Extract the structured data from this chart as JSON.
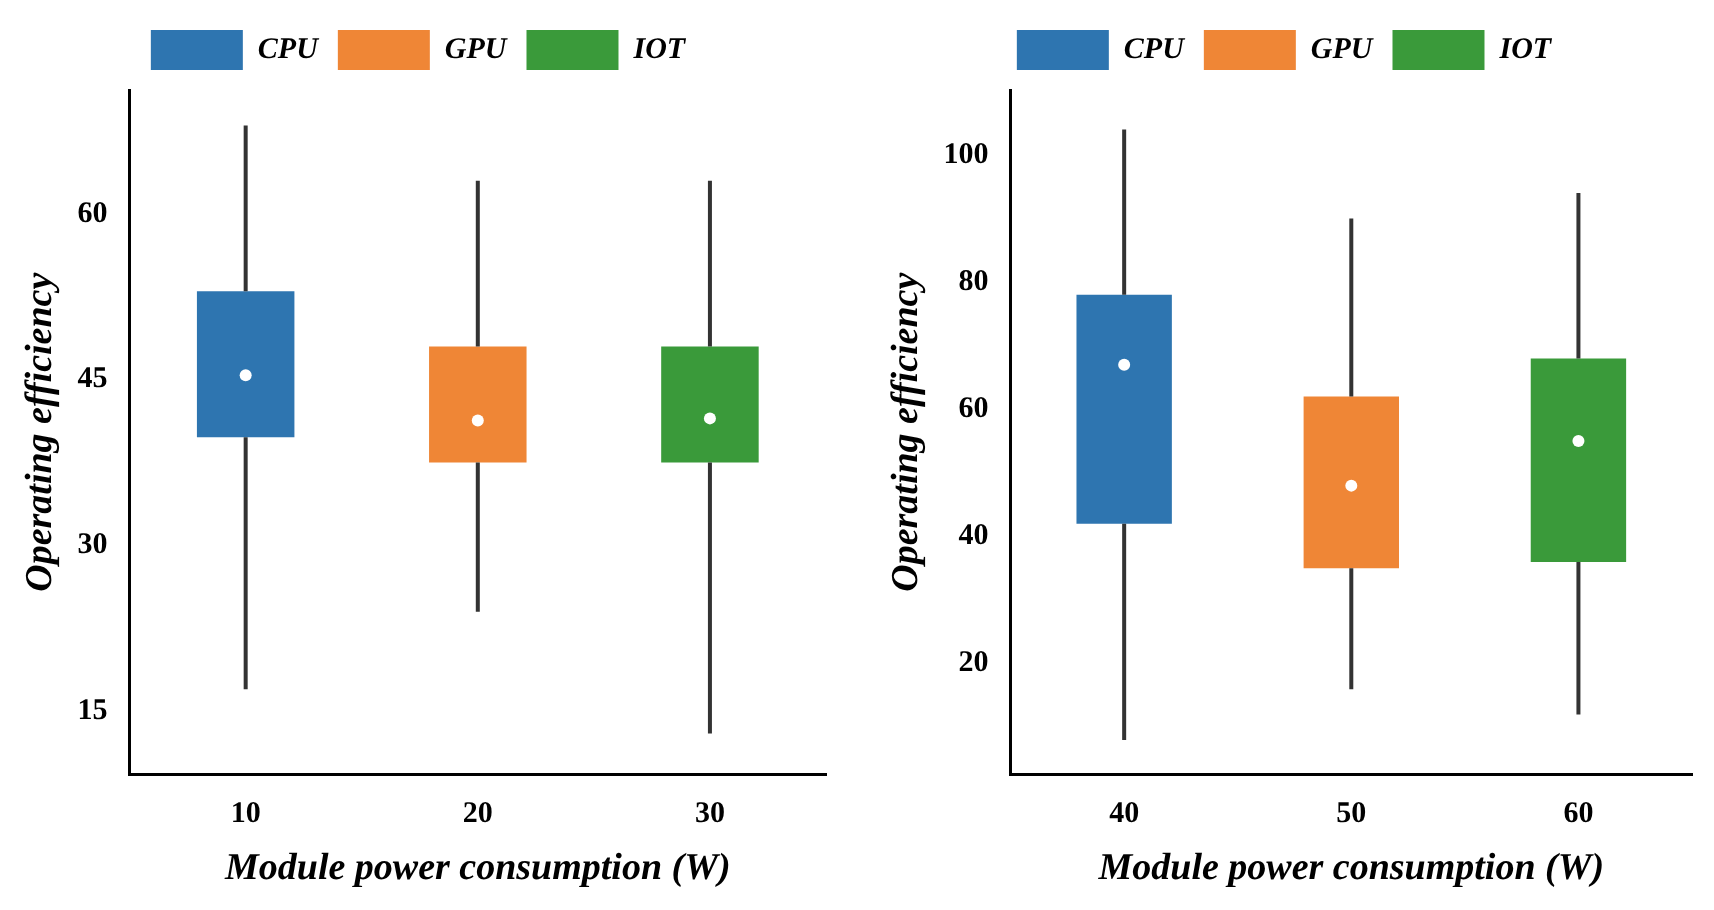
{
  "chart_data": [
    {
      "type": "box",
      "xlabel": "Module power consumption (W)",
      "ylabel": "Operating efficiency",
      "categories": [
        "10",
        "20",
        "30"
      ],
      "ylim": [
        9.3,
        71.2
      ],
      "yticks": [
        15,
        30,
        45,
        60
      ],
      "legend": "top",
      "grid": false,
      "series": [
        {
          "name": "CPU",
          "color": "#2e75b0",
          "boxes": [
            {
              "low": 17,
              "q1": 39.8,
              "median": 45.4,
              "q3": 53,
              "high": 68
            },
            null,
            null
          ]
        },
        {
          "name": "GPU",
          "color": "#ef8636",
          "boxes": [
            null,
            {
              "low": 24,
              "q1": 37.5,
              "median": 41.3,
              "q3": 48,
              "high": 63
            },
            null
          ]
        },
        {
          "name": "IOT",
          "color": "#3a9a3a",
          "boxes": [
            null,
            null,
            {
              "low": 13,
              "q1": 37.5,
              "median": 41.5,
              "q3": 48,
              "high": 63
            }
          ]
        }
      ]
    },
    {
      "type": "box",
      "xlabel": "Module power consumption (W)",
      "ylabel": "Operating efficiency",
      "categories": [
        "40",
        "50",
        "60"
      ],
      "ylim": [
        2.6,
        110.2
      ],
      "yticks": [
        20,
        40,
        60,
        80,
        100
      ],
      "legend": "top",
      "grid": false,
      "series": [
        {
          "name": "CPU",
          "color": "#2e75b0",
          "boxes": [
            {
              "low": 8,
              "q1": 42,
              "median": 67,
              "q3": 78,
              "high": 104
            },
            null,
            null
          ]
        },
        {
          "name": "GPU",
          "color": "#ef8636",
          "boxes": [
            null,
            {
              "low": 16,
              "q1": 35,
              "median": 48,
              "q3": 62,
              "high": 90
            },
            null
          ]
        },
        {
          "name": "IOT",
          "color": "#3a9a3a",
          "boxes": [
            null,
            null,
            {
              "low": 12,
              "q1": 36,
              "median": 55,
              "q3": 68,
              "high": 94
            }
          ]
        }
      ]
    }
  ]
}
